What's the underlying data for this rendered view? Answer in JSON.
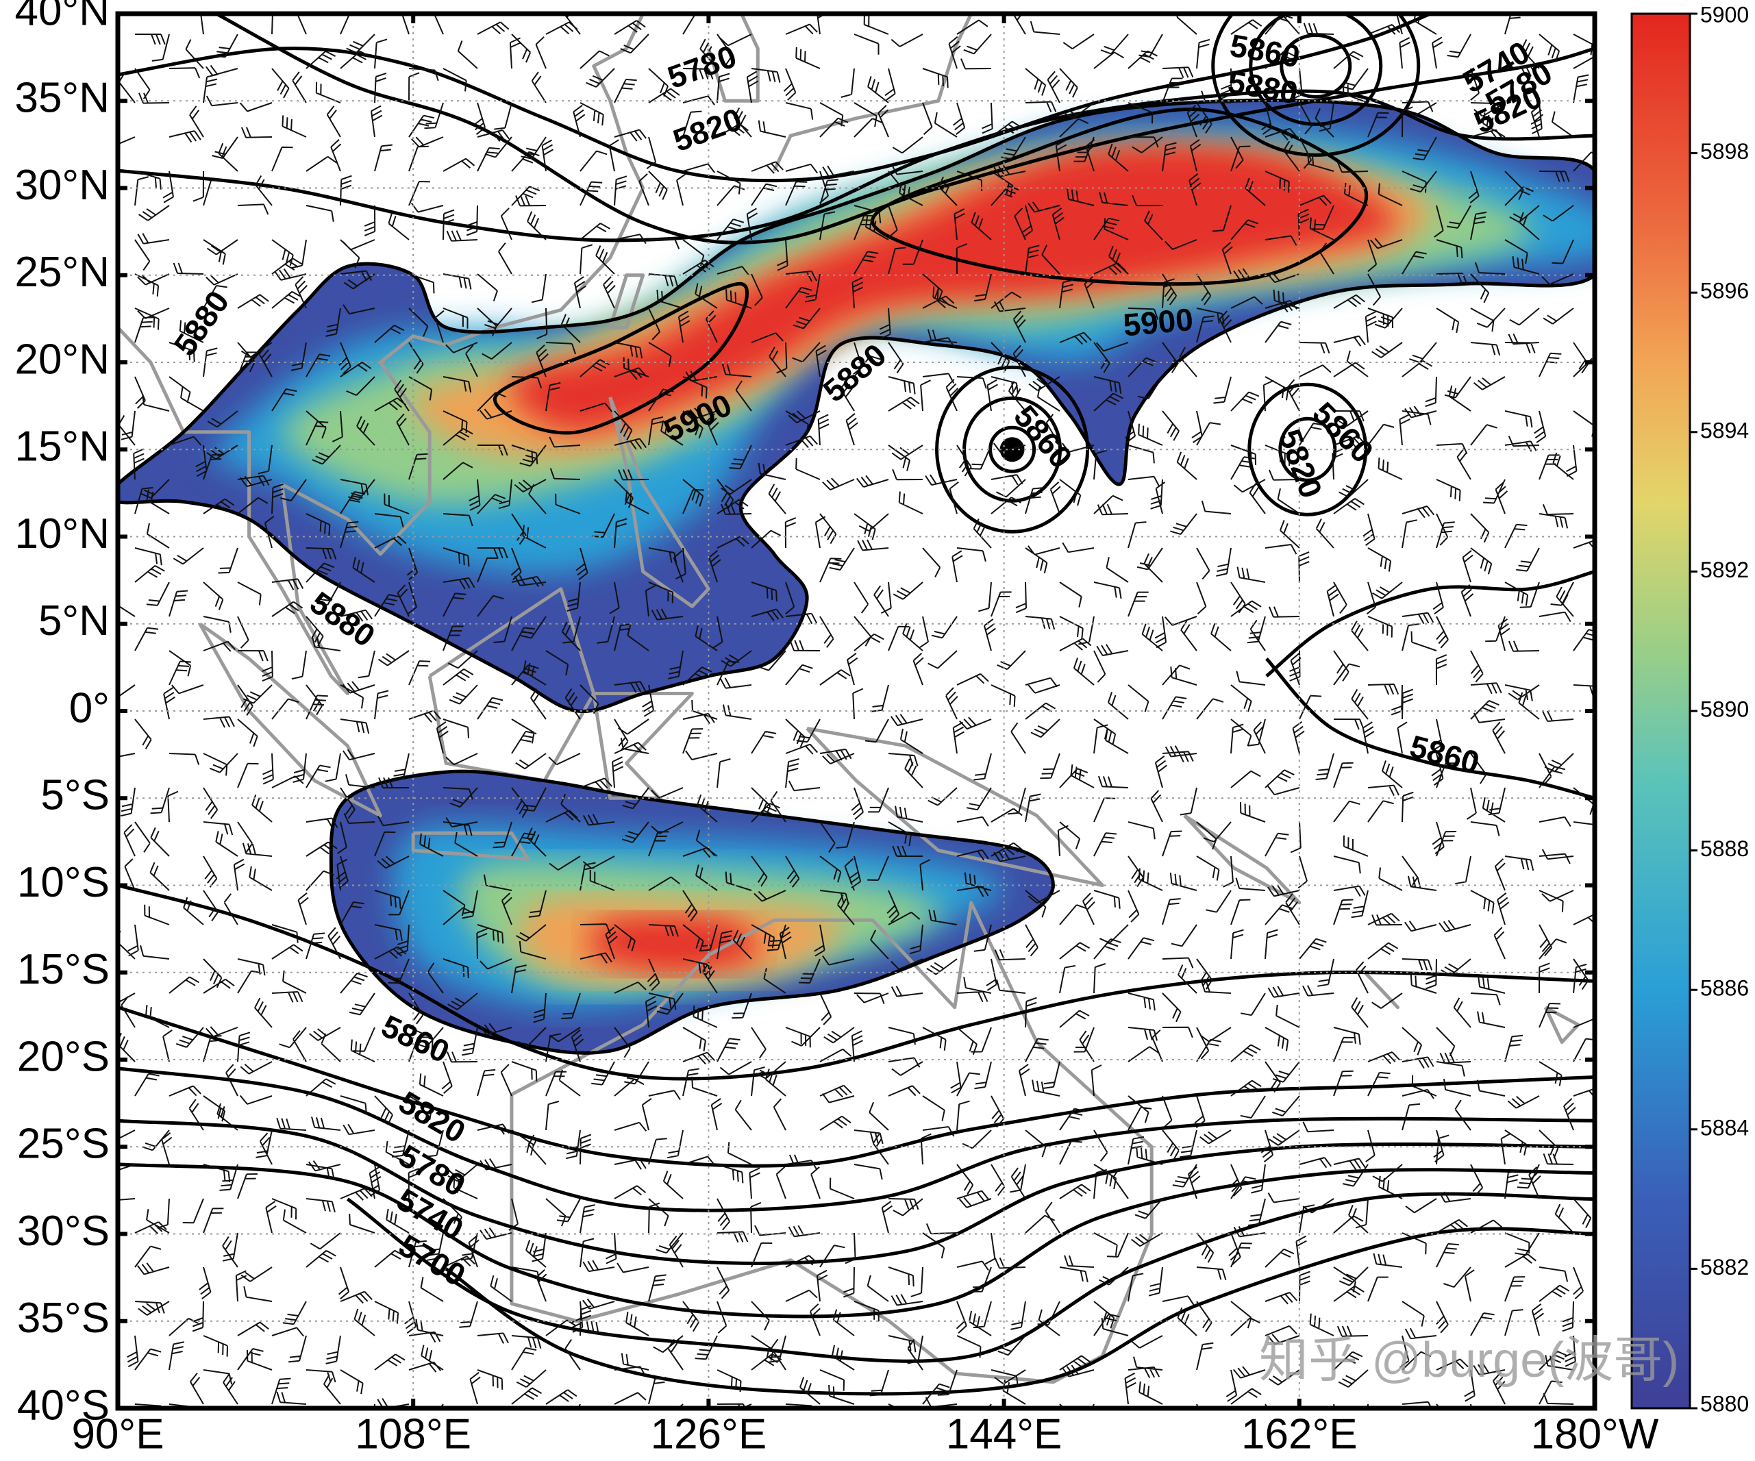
{
  "map": {
    "lat_ticks": [
      {
        "value": 40,
        "label": "40°N"
      },
      {
        "value": 35,
        "label": "35°N"
      },
      {
        "value": 30,
        "label": "30°N"
      },
      {
        "value": 25,
        "label": "25°N"
      },
      {
        "value": 20,
        "label": "20°N"
      },
      {
        "value": 15,
        "label": "15°N"
      },
      {
        "value": 10,
        "label": "10°N"
      },
      {
        "value": 5,
        "label": "5°N"
      },
      {
        "value": 0,
        "label": "0°"
      },
      {
        "value": -5,
        "label": "5°S"
      },
      {
        "value": -10,
        "label": "10°S"
      },
      {
        "value": -15,
        "label": "15°S"
      },
      {
        "value": -20,
        "label": "20°S"
      },
      {
        "value": -25,
        "label": "25°S"
      },
      {
        "value": -30,
        "label": "30°S"
      },
      {
        "value": -35,
        "label": "35°S"
      },
      {
        "value": -40,
        "label": "40°S"
      }
    ],
    "lon_ticks": [
      {
        "value": 90,
        "label": "90°E"
      },
      {
        "value": 108,
        "label": "108°E"
      },
      {
        "value": 126,
        "label": "126°E"
      },
      {
        "value": 144,
        "label": "144°E"
      },
      {
        "value": 162,
        "label": "162°E"
      },
      {
        "value": 180,
        "label": "180°W"
      }
    ],
    "colorbar": {
      "range": [
        5880,
        5900
      ],
      "ticks": [
        5880,
        5882,
        5884,
        5886,
        5888,
        5890,
        5892,
        5894,
        5896,
        5898,
        5900
      ]
    },
    "contour_labels": [
      "5780",
      "5820",
      "5860",
      "5880",
      "5740",
      "5780",
      "5820",
      "5880",
      "5900",
      "5880",
      "5900",
      "5860",
      "5860",
      "5820",
      "5880",
      "5860",
      "5860",
      "5820",
      "5780",
      "5740",
      "5700"
    ],
    "watermark": "知乎 @burge(波哥)"
  }
}
